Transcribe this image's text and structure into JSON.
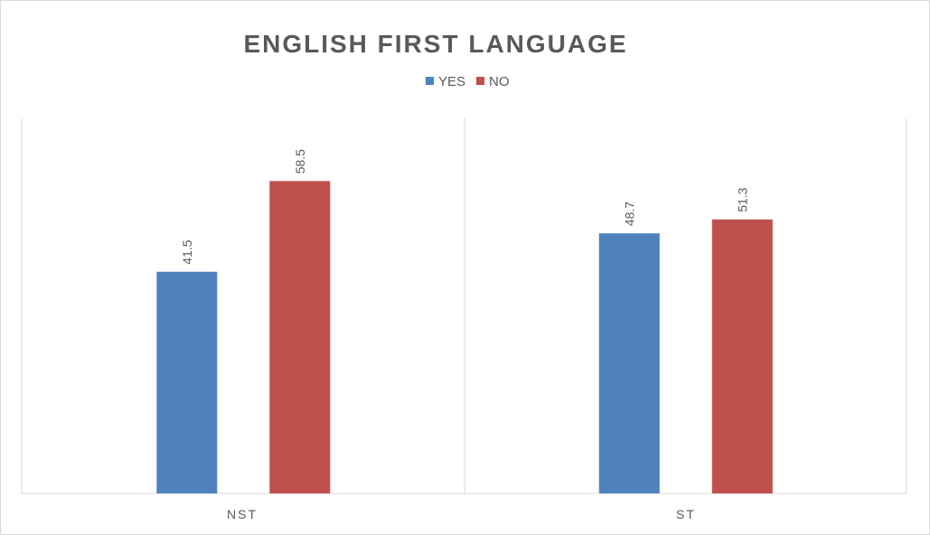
{
  "chart_data": {
    "type": "bar",
    "title": "ENGLISH FIRST LANGUAGE",
    "categories": [
      "NST",
      "ST"
    ],
    "series": [
      {
        "name": "YES",
        "color": "#4f81bd",
        "values": [
          41.5,
          48.7
        ]
      },
      {
        "name": "NO",
        "color": "#c0504d",
        "values": [
          58.5,
          51.3
        ]
      }
    ],
    "ylim": [
      0,
      70
    ],
    "legend": "top",
    "grid": false
  }
}
